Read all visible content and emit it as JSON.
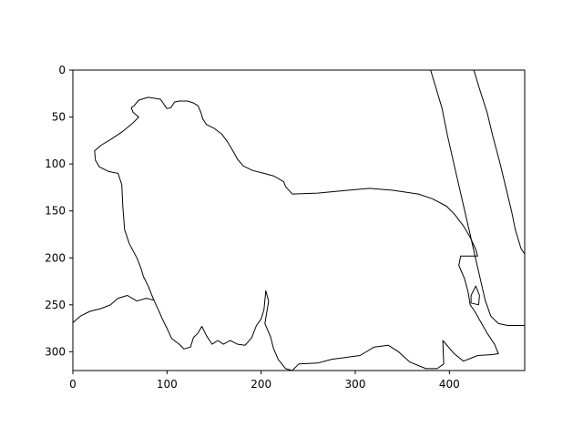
{
  "chart_data": {
    "type": "line",
    "title": "",
    "xlabel": "",
    "ylabel": "",
    "xlim": [
      0,
      480
    ],
    "ylim": [
      320,
      0
    ],
    "y_inverted": true,
    "grid": false,
    "xticks": [
      0,
      100,
      200,
      300,
      400
    ],
    "yticks": [
      0,
      50,
      100,
      150,
      200,
      250,
      300
    ],
    "colors": {
      "line": "#000000",
      "frame": "#000000",
      "background": "#ffffff"
    },
    "series": [
      {
        "values": [
          [
            65,
            38
          ],
          [
            70,
            32
          ],
          [
            80,
            29
          ],
          [
            93,
            31
          ],
          [
            100,
            41
          ],
          [
            104,
            40
          ],
          [
            108,
            34
          ],
          [
            113,
            33
          ],
          [
            122,
            33
          ],
          [
            128,
            35
          ],
          [
            133,
            38
          ],
          [
            136,
            45
          ],
          [
            138,
            52
          ],
          [
            142,
            58
          ],
          [
            150,
            62
          ],
          [
            158,
            68
          ],
          [
            164,
            76
          ],
          [
            170,
            86
          ],
          [
            175,
            95
          ],
          [
            181,
            102
          ],
          [
            191,
            107
          ],
          [
            203,
            110
          ],
          [
            214,
            113
          ],
          [
            224,
            119
          ],
          [
            226,
            124
          ],
          [
            233,
            132
          ],
          [
            260,
            131
          ],
          [
            292,
            128
          ],
          [
            315,
            126
          ],
          [
            340,
            128
          ],
          [
            367,
            132
          ],
          [
            382,
            137
          ],
          [
            397,
            145
          ],
          [
            405,
            153
          ],
          [
            415,
            166
          ],
          [
            422,
            178
          ],
          [
            428,
            191
          ],
          [
            430,
            198
          ],
          [
            412,
            198
          ],
          [
            410,
            208
          ],
          [
            416,
            222
          ],
          [
            420,
            237
          ],
          [
            422,
            250
          ],
          [
            427,
            257
          ],
          [
            432,
            266
          ],
          [
            440,
            280
          ],
          [
            448,
            292
          ],
          [
            452,
            302
          ],
          [
            446,
            303
          ],
          [
            430,
            304
          ],
          [
            415,
            310
          ],
          [
            405,
            302
          ],
          [
            393,
            288
          ],
          [
            394,
            313
          ],
          [
            387,
            318
          ],
          [
            375,
            318
          ],
          [
            358,
            311
          ],
          [
            346,
            300
          ],
          [
            335,
            293
          ],
          [
            320,
            295
          ],
          [
            305,
            304
          ],
          [
            290,
            306
          ],
          [
            275,
            308
          ],
          [
            260,
            312
          ],
          [
            240,
            313
          ],
          [
            233,
            320
          ],
          [
            226,
            318
          ],
          [
            218,
            308
          ],
          [
            213,
            296
          ],
          [
            210,
            284
          ],
          [
            204,
            270
          ],
          [
            208,
            246
          ],
          [
            205,
            235
          ],
          [
            203,
            255
          ],
          [
            200,
            265
          ],
          [
            195,
            272
          ],
          [
            190,
            285
          ],
          [
            183,
            293
          ],
          [
            175,
            292
          ],
          [
            167,
            288
          ],
          [
            160,
            292
          ],
          [
            154,
            288
          ],
          [
            148,
            292
          ],
          [
            142,
            283
          ],
          [
            137,
            273
          ],
          [
            133,
            280
          ],
          [
            128,
            285
          ],
          [
            125,
            295
          ],
          [
            118,
            297
          ],
          [
            113,
            292
          ],
          [
            105,
            286
          ],
          [
            100,
            275
          ],
          [
            95,
            265
          ],
          [
            92,
            258
          ],
          [
            86,
            245
          ],
          [
            80,
            230
          ],
          [
            75,
            220
          ],
          [
            72,
            210
          ],
          [
            68,
            200
          ],
          [
            60,
            185
          ],
          [
            55,
            170
          ],
          [
            53,
            145
          ],
          [
            52,
            122
          ],
          [
            48,
            110
          ],
          [
            38,
            108
          ],
          [
            28,
            103
          ],
          [
            24,
            96
          ],
          [
            23,
            86
          ],
          [
            30,
            80
          ],
          [
            40,
            74
          ],
          [
            52,
            66
          ],
          [
            63,
            57
          ],
          [
            70,
            50
          ],
          [
            64,
            45
          ],
          [
            62,
            40
          ],
          [
            65,
            38
          ]
        ]
      },
      {
        "values": [
          [
            0,
            269
          ],
          [
            8,
            262
          ],
          [
            18,
            257
          ],
          [
            30,
            254
          ],
          [
            40,
            250
          ],
          [
            48,
            243
          ],
          [
            58,
            240
          ],
          [
            68,
            246
          ],
          [
            78,
            243
          ],
          [
            86,
            245
          ]
        ]
      },
      {
        "values": [
          [
            380,
            0
          ],
          [
            392,
            40
          ],
          [
            398,
            70
          ],
          [
            406,
            105
          ],
          [
            414,
            140
          ],
          [
            422,
            175
          ],
          [
            430,
            210
          ],
          [
            438,
            245
          ],
          [
            444,
            262
          ],
          [
            452,
            270
          ],
          [
            462,
            272
          ],
          [
            480,
            272
          ]
        ]
      },
      {
        "values": [
          [
            426,
            0
          ],
          [
            432,
            20
          ],
          [
            440,
            45
          ],
          [
            446,
            70
          ],
          [
            454,
            100
          ],
          [
            460,
            125
          ],
          [
            466,
            150
          ],
          [
            470,
            170
          ],
          [
            476,
            190
          ],
          [
            480,
            196
          ]
        ]
      },
      {
        "values": [
          [
            428,
            230
          ],
          [
            423,
            240
          ],
          [
            423,
            248
          ],
          [
            431,
            250
          ],
          [
            432,
            240
          ],
          [
            428,
            230
          ]
        ]
      }
    ]
  }
}
